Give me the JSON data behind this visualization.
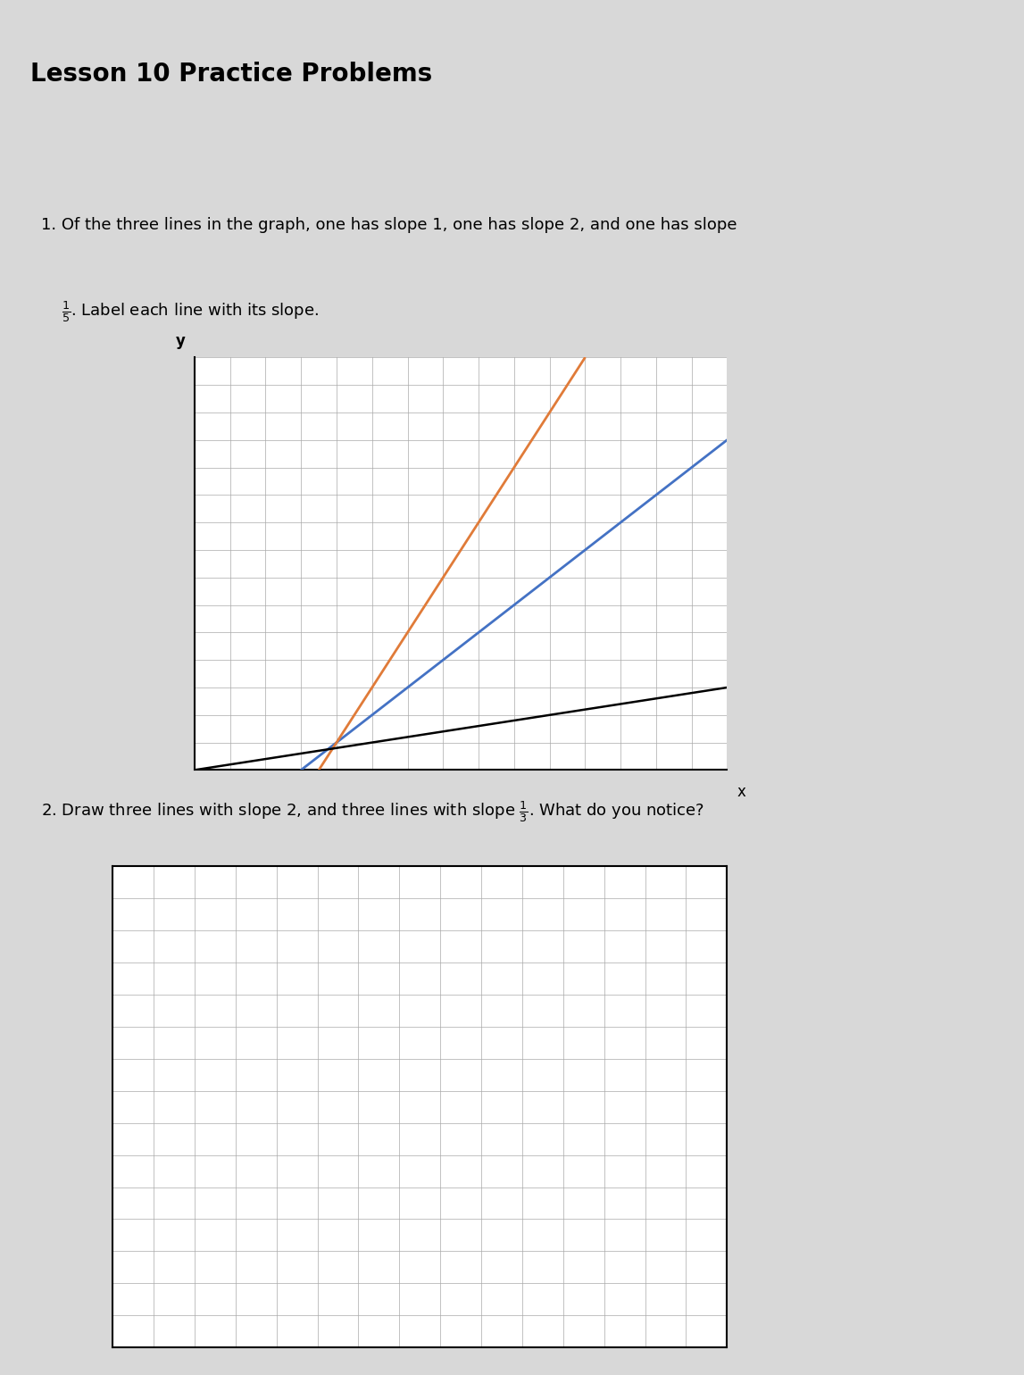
{
  "title": "Lesson 10 Practice Problems",
  "problem1_text": "1. Of the three lines in the graph, one has slope 1, one has slope 2, and one has slope\n$\\frac{1}{5}$. Label each line with its slope.",
  "problem2_text": "2. Draw three lines with slope 2, and three lines with slope $\\frac{1}{3}$. What do you notice?",
  "graph1": {
    "xlim": [
      0,
      15
    ],
    "ylim": [
      0,
      15
    ],
    "grid_major": 1,
    "lines": [
      {
        "slope": 1,
        "intercept": -3,
        "color": "#4472C4",
        "linewidth": 2.0
      },
      {
        "slope": 2,
        "intercept": -7,
        "color": "#E07B39",
        "linewidth": 2.0
      },
      {
        "slope": 0.2,
        "intercept": 0,
        "color": "#000000",
        "linewidth": 1.8
      }
    ]
  },
  "graph2": {
    "xlim": [
      0,
      15
    ],
    "ylim": [
      0,
      15
    ],
    "grid_major": 1
  },
  "background_color": "#f0f0f0",
  "page_background": "#e8e8e8"
}
